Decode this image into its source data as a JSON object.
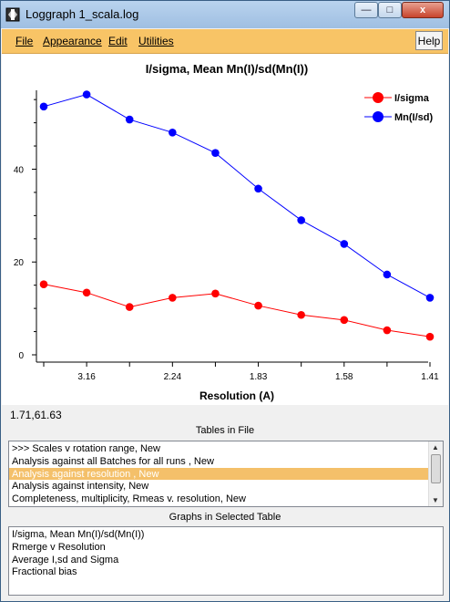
{
  "window": {
    "title": "Loggraph 1_scala.log",
    "controls": {
      "minimize": "—",
      "maximize": "□",
      "close": "x"
    }
  },
  "menu": {
    "items": [
      {
        "label": "File"
      },
      {
        "label": "Appearance"
      },
      {
        "label": "Edit"
      },
      {
        "label": "Utilities"
      }
    ],
    "help_label": "Help"
  },
  "chart_data": {
    "type": "line",
    "title": "I/sigma, Mean Mn(I)/sd(Mn(I))",
    "xlabel": "Resolution (A)",
    "ylabel": "",
    "x_tick_labels": [
      "3.16",
      "2.24",
      "1.83",
      "1.58",
      "1.41"
    ],
    "y_ticks": [
      0,
      20,
      40
    ],
    "ylim": [
      0,
      57
    ],
    "legend_position": "top-right",
    "grid": false,
    "series": [
      {
        "name": "I/sigma",
        "color": "#ff0000",
        "values": [
          15.2,
          13.4,
          10.3,
          12.3,
          13.2,
          10.6,
          8.6,
          7.5,
          5.3,
          3.9
        ]
      },
      {
        "name": "Mn(I/sd)",
        "color": "#0000ff",
        "values": [
          53.5,
          56.1,
          50.7,
          47.9,
          43.5,
          35.8,
          29.0,
          23.9,
          17.3,
          12.3
        ]
      }
    ]
  },
  "status": {
    "coords": "1.71,61.63"
  },
  "tables": {
    "label": "Tables in File",
    "items": [
      {
        "label": ">>> Scales v rotation range, New",
        "selected": false
      },
      {
        "label": "Analysis against all Batches for all runs , New",
        "selected": false
      },
      {
        "label": "Analysis against resolution , New",
        "selected": true
      },
      {
        "label": "Analysis against intensity, New",
        "selected": false
      },
      {
        "label": "Completeness, multiplicity, Rmeas v. resolution, New",
        "selected": false
      }
    ],
    "scroll_up": "▲",
    "scroll_down": "▼"
  },
  "graphs": {
    "label": "Graphs in Selected Table",
    "items": [
      {
        "label": "I/sigma, Mean Mn(I)/sd(Mn(I))"
      },
      {
        "label": "Rmerge v Resolution"
      },
      {
        "label": "Average I,sd and Sigma"
      },
      {
        "label": "Fractional bias"
      }
    ]
  }
}
